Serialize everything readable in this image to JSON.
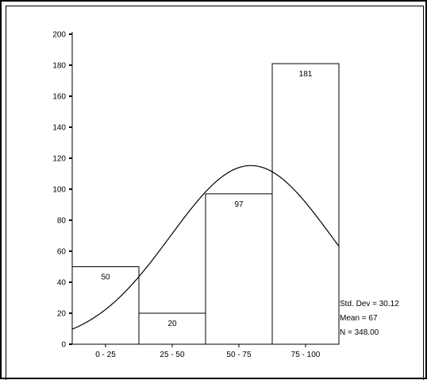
{
  "chart_data": {
    "type": "bar",
    "title": "",
    "xlabel": "",
    "ylabel": "",
    "categories": [
      "0 - 25",
      "25 - 50",
      "50 - 75",
      "75 - 100"
    ],
    "values": [
      50,
      20,
      97,
      181
    ],
    "value_labels": [
      "50",
      "20",
      "97",
      "181"
    ],
    "ylim": [
      0,
      200
    ],
    "yticks": [
      "0",
      "20",
      "40",
      "60",
      "80",
      "100",
      "120",
      "140",
      "160",
      "180",
      "200"
    ],
    "grid": false,
    "normal_curve": {
      "mean": 67,
      "std_dev": 30.12,
      "n": 348,
      "bin_width": 25
    },
    "stats_legend": [
      "Std. Dev = 30.12",
      "Mean = 67",
      "N = 348.00"
    ],
    "colors": {
      "bar_fill": "#ffffff",
      "bar_stroke": "#000000",
      "curve": "#000000"
    }
  }
}
